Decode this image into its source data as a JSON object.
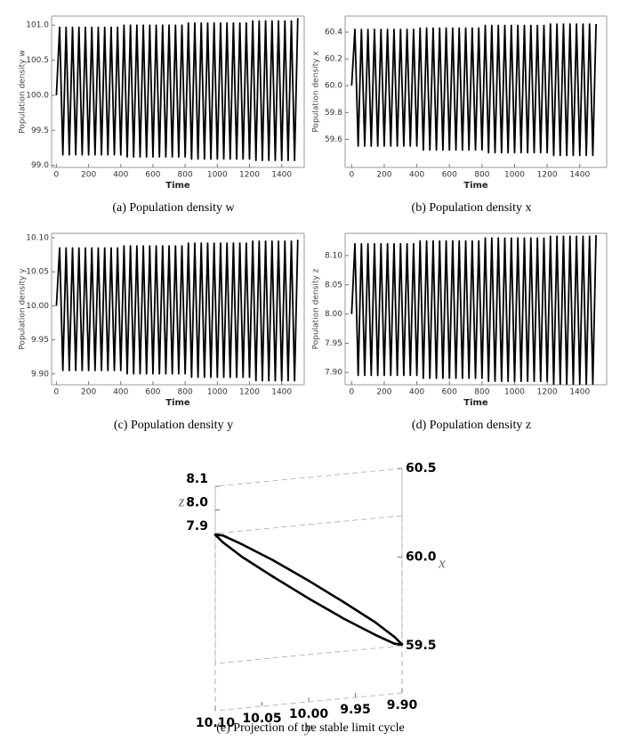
{
  "chart_data": [
    {
      "type": "line",
      "caption": "(a)  Population density w",
      "xlabel": "Time",
      "ylabel": "Population density w",
      "color": "#000000",
      "xlim": [
        -30,
        1540
      ],
      "ylim": [
        98.97,
        101.13
      ],
      "xticks": [
        0,
        200,
        400,
        600,
        800,
        1000,
        1200,
        1400
      ],
      "yticks": [
        {
          "value": 99,
          "label": "99.0"
        },
        99.5,
        {
          "value": 100,
          "label": "100.0"
        },
        100.5,
        {
          "value": 101,
          "label": "101.0"
        }
      ],
      "x": [
        0,
        20,
        40,
        60,
        80,
        100,
        120,
        140,
        160,
        180,
        200,
        220,
        240,
        260,
        280,
        300,
        320,
        340,
        360,
        380,
        400,
        420,
        440,
        460,
        480,
        500,
        520,
        540,
        560,
        580,
        600,
        620,
        640,
        660,
        680,
        700,
        720,
        740,
        760,
        780,
        800,
        820,
        840,
        860,
        880,
        900,
        920,
        940,
        960,
        980,
        1000,
        1020,
        1040,
        1060,
        1080,
        1100,
        1120,
        1140,
        1160,
        1180,
        1200,
        1220,
        1240,
        1260,
        1280,
        1300,
        1320,
        1340,
        1360,
        1380,
        1400,
        1420,
        1440,
        1460,
        1480,
        1500
      ],
      "values": [
        100.0,
        100.97,
        99.15,
        100.97,
        99.15,
        100.97,
        99.15,
        100.97,
        99.15,
        100.97,
        99.15,
        100.97,
        99.15,
        100.97,
        99.15,
        100.97,
        99.15,
        100.97,
        99.15,
        100.97,
        99.15,
        101.0,
        99.12,
        101.0,
        99.12,
        101.0,
        99.12,
        101.0,
        99.12,
        101.0,
        99.12,
        101.0,
        99.12,
        101.0,
        99.12,
        101.0,
        99.12,
        101.0,
        99.12,
        101.0,
        99.12,
        101.03,
        99.09,
        101.03,
        99.09,
        101.03,
        99.09,
        101.03,
        99.09,
        101.03,
        99.09,
        101.03,
        99.09,
        101.03,
        99.09,
        101.03,
        99.09,
        101.03,
        99.09,
        101.03,
        99.09,
        101.06,
        99.07,
        101.06,
        99.07,
        101.06,
        99.07,
        101.06,
        99.07,
        101.06,
        99.07,
        101.06,
        99.07,
        101.06,
        99.07,
        101.1
      ]
    },
    {
      "type": "line",
      "caption": "(b)  Population density x",
      "xlabel": "Time",
      "ylabel": "Population density x",
      "color": "#000000",
      "xlim": [
        -40,
        1565
      ],
      "ylim": [
        59.39,
        60.52
      ],
      "xticks": [
        0,
        200,
        400,
        600,
        800,
        1000,
        1200,
        1400
      ],
      "yticks": [
        59.6,
        59.8,
        {
          "value": 60,
          "label": "60.0"
        },
        60.2,
        60.4
      ],
      "x": [
        0,
        20,
        40,
        60,
        80,
        100,
        120,
        140,
        160,
        180,
        200,
        220,
        240,
        260,
        280,
        300,
        320,
        340,
        360,
        380,
        400,
        420,
        440,
        460,
        480,
        500,
        520,
        540,
        560,
        580,
        600,
        620,
        640,
        660,
        680,
        700,
        720,
        740,
        760,
        780,
        800,
        820,
        840,
        860,
        880,
        900,
        920,
        940,
        960,
        980,
        1000,
        1020,
        1040,
        1060,
        1080,
        1100,
        1120,
        1140,
        1160,
        1180,
        1200,
        1220,
        1240,
        1260,
        1280,
        1300,
        1320,
        1340,
        1360,
        1380,
        1400,
        1420,
        1440,
        1460,
        1480,
        1500
      ],
      "values": [
        60.0,
        60.42,
        59.55,
        60.42,
        59.55,
        60.42,
        59.55,
        60.42,
        59.55,
        60.42,
        59.55,
        60.42,
        59.55,
        60.42,
        59.55,
        60.42,
        59.55,
        60.42,
        59.55,
        60.42,
        59.55,
        60.43,
        59.52,
        60.43,
        59.52,
        60.43,
        59.52,
        60.43,
        59.52,
        60.43,
        59.52,
        60.43,
        59.52,
        60.43,
        59.52,
        60.43,
        59.52,
        60.43,
        59.52,
        60.43,
        59.52,
        60.45,
        59.5,
        60.45,
        59.5,
        60.45,
        59.5,
        60.45,
        59.5,
        60.45,
        59.5,
        60.45,
        59.5,
        60.45,
        59.5,
        60.45,
        59.5,
        60.45,
        59.5,
        60.45,
        59.5,
        60.46,
        59.48,
        60.46,
        59.48,
        60.46,
        59.48,
        60.46,
        59.48,
        60.46,
        59.48,
        60.46,
        59.48,
        60.46,
        59.48,
        60.46
      ]
    },
    {
      "type": "line",
      "caption": "(c)  Population density y",
      "xlabel": "Time",
      "ylabel": "Population density y",
      "color": "#000000",
      "xlim": [
        -30,
        1540
      ],
      "ylim": [
        9.884,
        10.1065
      ],
      "xticks": [
        0,
        200,
        400,
        600,
        800,
        1000,
        1200,
        1400
      ],
      "yticks": [
        {
          "value": 9.9,
          "label": "9.90"
        },
        9.95,
        {
          "value": 10,
          "label": "10.00"
        },
        10.05,
        {
          "value": 10.1,
          "label": "10.10"
        }
      ],
      "x": [
        0,
        20,
        40,
        60,
        80,
        100,
        120,
        140,
        160,
        180,
        200,
        220,
        240,
        260,
        280,
        300,
        320,
        340,
        360,
        380,
        400,
        420,
        440,
        460,
        480,
        500,
        520,
        540,
        560,
        580,
        600,
        620,
        640,
        660,
        680,
        700,
        720,
        740,
        760,
        780,
        800,
        820,
        840,
        860,
        880,
        900,
        920,
        940,
        960,
        980,
        1000,
        1020,
        1040,
        1060,
        1080,
        1100,
        1120,
        1140,
        1160,
        1180,
        1200,
        1220,
        1240,
        1260,
        1280,
        1300,
        1320,
        1340,
        1360,
        1380,
        1400,
        1420,
        1440,
        1460,
        1480,
        1500
      ],
      "values": [
        10.0,
        10.085,
        9.905,
        10.085,
        9.905,
        10.085,
        9.905,
        10.085,
        9.905,
        10.085,
        9.905,
        10.085,
        9.905,
        10.085,
        9.905,
        10.085,
        9.905,
        10.085,
        9.905,
        10.085,
        9.905,
        10.088,
        9.9,
        10.088,
        9.9,
        10.088,
        9.9,
        10.088,
        9.9,
        10.088,
        9.9,
        10.088,
        9.9,
        10.088,
        9.9,
        10.088,
        9.9,
        10.088,
        9.9,
        10.088,
        9.9,
        10.092,
        9.895,
        10.092,
        9.895,
        10.092,
        9.895,
        10.092,
        9.895,
        10.092,
        9.895,
        10.092,
        9.895,
        10.092,
        9.895,
        10.092,
        9.895,
        10.092,
        9.895,
        10.092,
        9.895,
        10.095,
        9.89,
        10.095,
        9.89,
        10.095,
        9.89,
        10.095,
        9.89,
        10.095,
        9.89,
        10.095,
        9.89,
        10.095,
        9.89,
        10.097
      ]
    },
    {
      "type": "line",
      "caption": "(d)  Population density z",
      "xlabel": "Time",
      "ylabel": "Population density z",
      "color": "#000000",
      "xlim": [
        -40,
        1565
      ],
      "ylim": [
        7.879,
        8.138
      ],
      "xticks": [
        0,
        200,
        400,
        600,
        800,
        1000,
        1200,
        1400
      ],
      "yticks": [
        {
          "value": 7.9,
          "label": "7.90"
        },
        7.95,
        {
          "value": 8,
          "label": "8.00"
        },
        8.05,
        {
          "value": 8.1,
          "label": "8.10"
        }
      ],
      "x": [
        0,
        20,
        40,
        60,
        80,
        100,
        120,
        140,
        160,
        180,
        200,
        220,
        240,
        260,
        280,
        300,
        320,
        340,
        360,
        380,
        400,
        420,
        440,
        460,
        480,
        500,
        520,
        540,
        560,
        580,
        600,
        620,
        640,
        660,
        680,
        700,
        720,
        740,
        760,
        780,
        800,
        820,
        840,
        860,
        880,
        900,
        920,
        940,
        960,
        980,
        1000,
        1020,
        1040,
        1060,
        1080,
        1100,
        1120,
        1140,
        1160,
        1180,
        1200,
        1220,
        1240,
        1260,
        1280,
        1300,
        1320,
        1340,
        1360,
        1380,
        1400,
        1420,
        1440,
        1460,
        1480,
        1500
      ],
      "values": [
        8.0,
        8.12,
        7.895,
        8.12,
        7.895,
        8.12,
        7.895,
        8.12,
        7.895,
        8.12,
        7.895,
        8.12,
        7.895,
        8.12,
        7.895,
        8.12,
        7.895,
        8.12,
        7.895,
        8.12,
        7.895,
        8.125,
        7.89,
        8.125,
        7.89,
        8.125,
        7.89,
        8.125,
        7.89,
        8.125,
        7.89,
        8.125,
        7.89,
        8.125,
        7.89,
        8.125,
        7.89,
        8.125,
        7.89,
        8.125,
        7.89,
        8.13,
        7.885,
        8.13,
        7.885,
        8.13,
        7.885,
        8.13,
        7.885,
        8.13,
        7.885,
        8.13,
        7.885,
        8.13,
        7.885,
        8.13,
        7.885,
        8.13,
        7.885,
        8.13,
        7.885,
        8.133,
        7.88,
        8.133,
        7.88,
        8.133,
        7.88,
        8.133,
        7.88,
        8.133,
        7.88,
        8.133,
        7.88,
        8.133,
        7.88,
        8.135
      ]
    },
    {
      "type": "line3d",
      "caption": "(e)  Projection of the stable limit cycle",
      "xlabel": "x",
      "ylabel": "y",
      "zlabel": "z",
      "color": "#000000",
      "xlim": [
        59.5,
        60.5
      ],
      "ylim": [
        9.9,
        10.1
      ],
      "zlim": [
        7.9,
        8.1
      ],
      "xticks": [
        59.5,
        {
          "value": 60,
          "label": "60.0"
        },
        60.5
      ],
      "yticks": [
        {
          "value": 9.9,
          "label": "9.90"
        },
        9.95,
        {
          "value": 10,
          "label": "10.00"
        },
        10.05,
        {
          "value": 10.1,
          "label": "10.10"
        }
      ],
      "zticks": [
        7.9,
        {
          "value": 8,
          "label": "8.0"
        },
        8.1
      ],
      "x": [
        60.2,
        60.204,
        60.177,
        60.123,
        60.05,
        59.97,
        59.894,
        59.834,
        59.8,
        59.796,
        59.823,
        59.877,
        59.95,
        60.03,
        60.106,
        60.166
      ],
      "y": [
        10.1,
        10.092,
        10.071,
        10.038,
        10,
        9.962,
        9.929,
        9.908,
        9.9,
        9.908,
        9.929,
        9.962,
        10,
        10.038,
        10.071,
        10.092
      ],
      "z": [
        8.12,
        8.111,
        8.085,
        8.046,
        8,
        7.954,
        7.915,
        7.889,
        7.88,
        7.889,
        7.915,
        7.954,
        8,
        8.046,
        8.085,
        8.111
      ]
    }
  ]
}
